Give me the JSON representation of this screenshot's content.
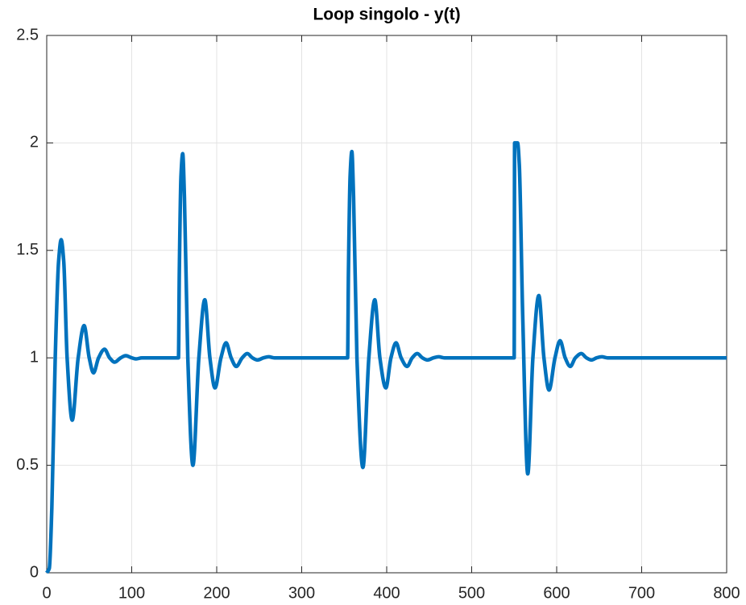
{
  "chart_data": {
    "type": "line",
    "title": "Loop singolo - y(t)",
    "x": [
      0,
      3,
      6,
      10,
      14,
      17,
      20,
      24,
      30,
      37,
      44,
      50,
      55,
      61,
      68,
      74,
      80,
      87,
      93,
      100,
      105,
      112,
      155,
      156,
      158,
      160,
      162,
      166,
      172,
      179,
      186,
      192,
      198,
      205,
      211,
      217,
      223,
      230,
      236,
      242,
      248,
      255,
      261,
      268,
      354,
      355,
      357,
      359,
      361,
      365,
      372,
      379,
      386,
      392,
      399,
      405,
      411,
      417,
      424,
      430,
      436,
      442,
      448,
      455,
      461,
      468,
      550,
      550.5,
      554,
      556,
      560,
      566,
      572,
      579,
      585,
      591,
      598,
      604,
      610,
      616,
      622,
      629,
      635,
      641,
      647,
      653,
      660,
      800
    ],
    "series": [
      {
        "name": "y(t)",
        "color": "#0072BD",
        "values": [
          0,
          0.02,
          0.3,
          1.0,
          1.45,
          1.55,
          1.45,
          1.0,
          0.71,
          1.0,
          1.15,
          1.0,
          0.93,
          1.0,
          1.04,
          1.0,
          0.98,
          1.0,
          1.01,
          1.0,
          0.995,
          1.0,
          1.0,
          1.4,
          1.85,
          1.95,
          1.75,
          1.0,
          0.5,
          1.0,
          1.27,
          1.0,
          0.86,
          1.0,
          1.07,
          1.0,
          0.96,
          1.0,
          1.02,
          1.0,
          0.99,
          1.0,
          1.005,
          1.0,
          1.0,
          1.4,
          1.85,
          1.96,
          1.75,
          1.0,
          0.49,
          1.0,
          1.27,
          1.0,
          0.86,
          1.0,
          1.07,
          1.0,
          0.96,
          1.0,
          1.02,
          1.0,
          0.99,
          1.0,
          1.005,
          1.0,
          1.0,
          2.0,
          2.0,
          1.9,
          1.2,
          0.46,
          1.0,
          1.29,
          1.0,
          0.85,
          1.0,
          1.08,
          1.0,
          0.96,
          1.0,
          1.02,
          1.0,
          0.99,
          1.0,
          1.005,
          1.0,
          1.0
        ]
      }
    ],
    "xlim": [
      0,
      800
    ],
    "ylim": [
      0,
      2.5
    ],
    "xticks": [
      0,
      100,
      200,
      300,
      400,
      500,
      600,
      700,
      800
    ],
    "yticks": [
      0,
      0.5,
      1,
      1.5,
      2,
      2.5
    ],
    "grid": true
  }
}
